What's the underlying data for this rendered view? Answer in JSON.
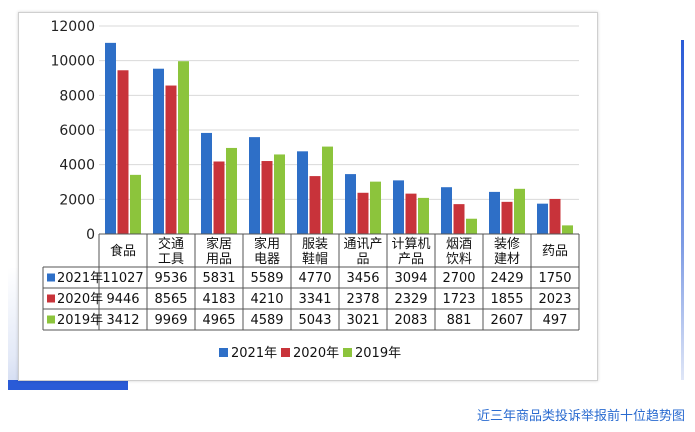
{
  "chart_data": {
    "type": "bar",
    "categories": [
      "食品",
      "交通工具",
      "家居用品",
      "家用电器",
      "服装鞋帽",
      "通讯产品",
      "计算机产品",
      "烟酒饮料",
      "装修建材",
      "药品"
    ],
    "category_lines": [
      [
        "食品"
      ],
      [
        "交通",
        "工具"
      ],
      [
        "家居",
        "用品"
      ],
      [
        "家用",
        "电器"
      ],
      [
        "服装",
        "鞋帽"
      ],
      [
        "通讯产",
        "品"
      ],
      [
        "计算机",
        "产品"
      ],
      [
        "烟酒",
        "饮料"
      ],
      [
        "装修",
        "建材"
      ],
      [
        "药品"
      ]
    ],
    "series": [
      {
        "name": "2021年",
        "color": "#2e6fc7",
        "values": [
          11027,
          9536,
          5831,
          5589,
          4770,
          3456,
          3094,
          2700,
          2429,
          1750
        ]
      },
      {
        "name": "2020年",
        "color": "#c8333a",
        "values": [
          9446,
          8565,
          4183,
          4210,
          3341,
          2378,
          2329,
          1723,
          1855,
          2023
        ]
      },
      {
        "name": "2019年",
        "color": "#8cc43c",
        "values": [
          3412,
          9969,
          4965,
          4589,
          5043,
          3021,
          2083,
          881,
          2607,
          497
        ]
      }
    ],
    "yticks": [
      0,
      2000,
      4000,
      6000,
      8000,
      10000,
      12000
    ],
    "ylim": [
      0,
      12000
    ],
    "grid": true,
    "legend": "bottom",
    "data_table": true
  },
  "caption": "近三年商品类投诉举报前十位趋势图"
}
